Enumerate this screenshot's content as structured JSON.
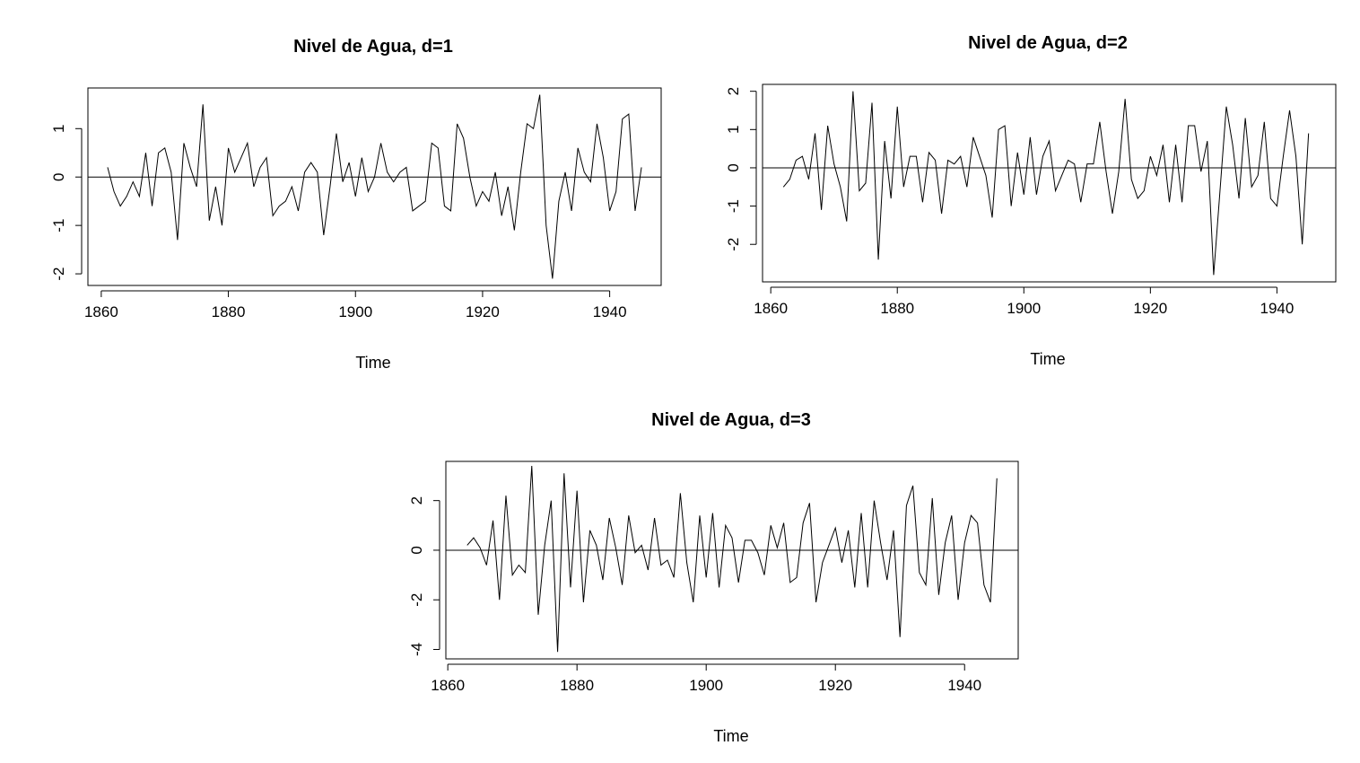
{
  "chart_data": [
    {
      "type": "line",
      "title": "Nivel de Agua, d=1",
      "xlabel": "Time",
      "ylabel": "",
      "xlim": [
        1857.9,
        1948.1
      ],
      "ylim": [
        -2.24,
        1.84
      ],
      "x_ticks": [
        1860,
        1880,
        1900,
        1920,
        1940
      ],
      "y_ticks": [
        -2,
        -1,
        0,
        1
      ],
      "reference_line": 0,
      "grid": false,
      "x_start": 1861,
      "x_step": 1,
      "values": [
        0.2,
        -0.3,
        -0.6,
        -0.4,
        -0.1,
        -0.4,
        0.5,
        -0.6,
        0.5,
        0.6,
        0.1,
        -1.3,
        0.7,
        0.2,
        -0.2,
        1.5,
        -0.9,
        -0.2,
        -1.0,
        0.6,
        0.1,
        0.4,
        0.7,
        -0.2,
        0.2,
        0.4,
        -0.8,
        -0.6,
        -0.5,
        -0.2,
        -0.7,
        0.1,
        0.3,
        0.1,
        -1.2,
        -0.2,
        0.9,
        -0.1,
        0.3,
        -0.4,
        0.4,
        -0.3,
        0.0,
        0.7,
        0.1,
        -0.1,
        0.1,
        0.2,
        -0.7,
        -0.6,
        -0.5,
        0.7,
        0.6,
        -0.6,
        -0.7,
        1.1,
        0.8,
        0.0,
        -0.6,
        -0.3,
        -0.5,
        0.1,
        -0.8,
        -0.2,
        -1.1,
        0.1,
        1.1,
        1.0,
        1.7,
        -1.0,
        -2.1,
        -0.5,
        0.1,
        -0.7,
        0.6,
        0.1,
        -0.1,
        1.1,
        0.4,
        -0.7,
        -0.3,
        1.2,
        1.3,
        -0.7,
        0.2
      ]
    },
    {
      "type": "line",
      "title": "Nivel de Agua, d=2",
      "xlabel": "Time",
      "ylabel": "",
      "xlim": [
        1858.7,
        1949.3
      ],
      "ylim": [
        -2.98,
        2.18
      ],
      "x_ticks": [
        1860,
        1880,
        1900,
        1920,
        1940
      ],
      "y_ticks": [
        -2,
        -1,
        0,
        1,
        2
      ],
      "reference_line": 0,
      "grid": false,
      "x_start": 1862,
      "x_step": 1,
      "values": [
        -0.5,
        -0.3,
        0.2,
        0.3,
        -0.3,
        0.9,
        -1.1,
        1.1,
        0.1,
        -0.5,
        -1.4,
        2.0,
        -0.6,
        -0.4,
        1.7,
        -2.4,
        0.7,
        -0.8,
        1.6,
        -0.5,
        0.3,
        0.3,
        -0.9,
        0.4,
        0.2,
        -1.2,
        0.2,
        0.1,
        0.3,
        -0.5,
        0.8,
        0.3,
        -0.2,
        -1.3,
        1.0,
        1.1,
        -1.0,
        0.4,
        -0.7,
        0.8,
        -0.7,
        0.3,
        0.7,
        -0.6,
        -0.2,
        0.2,
        0.1,
        -0.9,
        0.1,
        0.1,
        1.2,
        -0.1,
        -1.2,
        -0.1,
        1.8,
        -0.3,
        -0.8,
        -0.6,
        0.3,
        -0.2,
        0.6,
        -0.9,
        0.6,
        -0.9,
        1.1,
        1.1,
        -0.1,
        0.7,
        -2.8,
        -0.6,
        1.6,
        0.6,
        -0.8,
        1.3,
        -0.5,
        -0.2,
        1.2,
        -0.8,
        -1.0,
        0.3,
        1.5,
        0.3,
        -2.0,
        0.9
      ]
    },
    {
      "type": "line",
      "title": "Nivel de Agua, d=3",
      "xlabel": "Time",
      "ylabel": "",
      "xlim": [
        1859.7,
        1948.3
      ],
      "ylim": [
        -4.38,
        3.58
      ],
      "x_ticks": [
        1860,
        1880,
        1900,
        1920,
        1940
      ],
      "y_ticks": [
        -4,
        -2,
        0,
        2
      ],
      "reference_line": 0,
      "grid": false,
      "x_start": 1863,
      "x_step": 1,
      "values": [
        0.2,
        0.5,
        0.1,
        -0.6,
        1.2,
        -2.0,
        2.2,
        -1.0,
        -0.6,
        -0.9,
        3.4,
        -2.6,
        0.2,
        2.0,
        -4.1,
        3.1,
        -1.5,
        2.4,
        -2.1,
        0.8,
        0.2,
        -1.2,
        1.3,
        0.1,
        -1.4,
        1.4,
        -0.1,
        0.2,
        -0.8,
        1.3,
        -0.6,
        -0.4,
        -1.1,
        2.3,
        -0.5,
        -2.1,
        1.4,
        -1.1,
        1.5,
        -1.5,
        1.0,
        0.5,
        -1.3,
        0.4,
        0.4,
        -0.1,
        -1.0,
        1.0,
        0.1,
        1.1,
        -1.3,
        -1.1,
        1.1,
        1.9,
        -2.1,
        -0.5,
        0.2,
        0.9,
        -0.5,
        0.8,
        -1.5,
        1.5,
        -1.5,
        2.0,
        0.3,
        -1.2,
        0.8,
        -3.5,
        1.8,
        2.6,
        -0.9,
        -1.4,
        2.1,
        -1.8,
        0.3,
        1.4,
        -2.0,
        0.3,
        1.4,
        1.1,
        -1.4,
        -2.1,
        2.9
      ]
    }
  ]
}
